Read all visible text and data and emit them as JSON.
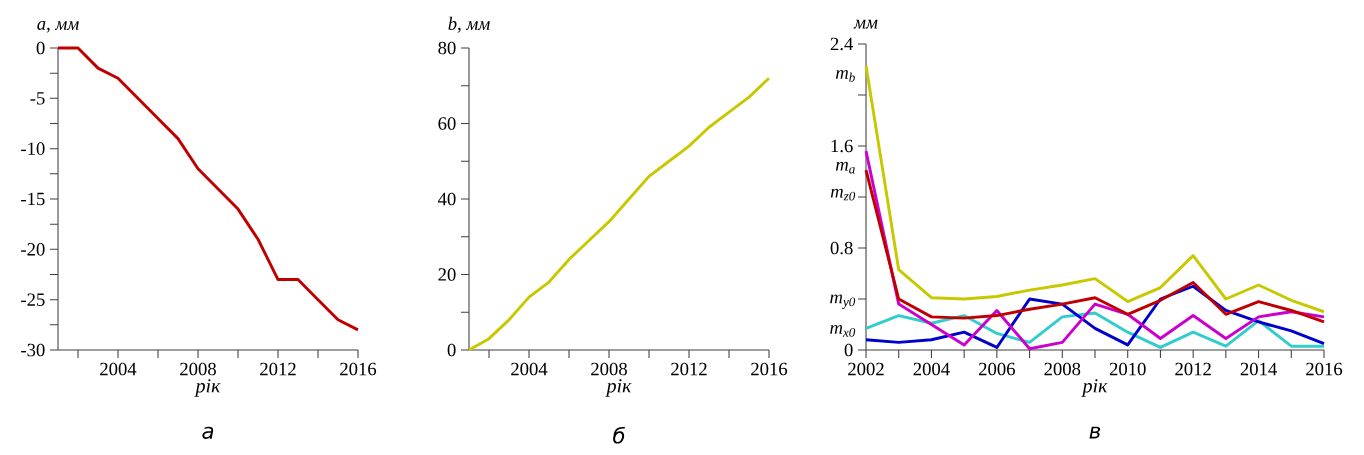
{
  "chart_data": [
    {
      "type": "line",
      "title": "а",
      "xlabel": "рік",
      "ylabel": "a, мм",
      "x": [
        2001,
        2002,
        2003,
        2004,
        2005,
        2006,
        2007,
        2008,
        2009,
        2010,
        2011,
        2012,
        2013,
        2014,
        2015,
        2016
      ],
      "values": [
        0,
        0,
        -2,
        -3,
        -5,
        -7,
        -9,
        -12,
        -14,
        -16,
        -19,
        -23,
        -23,
        -25,
        -27,
        -28
      ],
      "color": "#c00000",
      "xlim": [
        2001,
        2016
      ],
      "ylim": [
        -30,
        0
      ],
      "xticks": [
        {
          "value": 2002,
          "label": null
        },
        2004,
        {
          "value": 2006,
          "label": null
        },
        2008,
        {
          "value": 2010,
          "label": null
        },
        2012,
        {
          "value": 2014,
          "label": null
        },
        2016
      ],
      "yticks": [
        -30,
        {
          "value": -27.5,
          "label": null
        },
        -25,
        {
          "value": -22.5,
          "label": null
        },
        -20,
        {
          "value": -17.5,
          "label": null
        },
        -15,
        {
          "value": -12.5,
          "label": null
        },
        -10,
        {
          "value": -7.5,
          "label": null
        },
        -5,
        {
          "value": -2.5,
          "label": null
        },
        0
      ]
    },
    {
      "type": "line",
      "title": "б",
      "xlabel": "рік",
      "ylabel": "b, мм",
      "x": [
        2001,
        2002,
        2003,
        2004,
        2005,
        2006,
        2007,
        2008,
        2009,
        2010,
        2011,
        2012,
        2013,
        2014,
        2015,
        2016
      ],
      "values": [
        0,
        3,
        8,
        14,
        18,
        24,
        29,
        34,
        40,
        46,
        50,
        54,
        59,
        63,
        67,
        72
      ],
      "color": "#c8c800",
      "xlim": [
        2001,
        2016
      ],
      "ylim": [
        0,
        80
      ],
      "xticks": [
        {
          "value": 2002,
          "label": null
        },
        2004,
        {
          "value": 2006,
          "label": null
        },
        2008,
        {
          "value": 2010,
          "label": null
        },
        2012,
        {
          "value": 2014,
          "label": null
        },
        2016
      ],
      "yticks": [
        0,
        {
          "value": 10,
          "label": null
        },
        20,
        {
          "value": 30,
          "label": null
        },
        40,
        {
          "value": 50,
          "label": null
        },
        60,
        {
          "value": 70,
          "label": null
        },
        80
      ]
    },
    {
      "type": "line",
      "title": "в",
      "xlabel": "рік",
      "ylabel": "мм",
      "x": [
        2002,
        2003,
        2004,
        2005,
        2006,
        2007,
        2008,
        2009,
        2010,
        2011,
        2012,
        2013,
        2014,
        2015,
        2016
      ],
      "series": [
        {
          "color": "#c8c800",
          "values": [
            2.23,
            0.63,
            0.41,
            0.4,
            0.42,
            0.47,
            0.51,
            0.56,
            0.38,
            0.49,
            0.74,
            0.4,
            0.51,
            0.39,
            0.3
          ]
        },
        {
          "color": "#33cccc",
          "values": [
            0.17,
            0.27,
            0.21,
            0.27,
            0.13,
            0.06,
            0.26,
            0.29,
            0.14,
            0.02,
            0.14,
            0.03,
            0.23,
            0.03,
            0.03
          ]
        },
        {
          "color": "#0000cc",
          "values": [
            0.08,
            0.06,
            0.08,
            0.14,
            0.02,
            0.4,
            0.36,
            0.17,
            0.04,
            0.4,
            0.5,
            0.31,
            0.22,
            0.15,
            0.05
          ]
        },
        {
          "color": "#cc00cc",
          "values": [
            1.56,
            0.36,
            0.2,
            0.04,
            0.31,
            0.01,
            0.06,
            0.36,
            0.28,
            0.09,
            0.27,
            0.09,
            0.26,
            0.3,
            0.26
          ]
        },
        {
          "color": "#c00000",
          "values": [
            1.41,
            0.4,
            0.26,
            0.25,
            0.27,
            0.32,
            0.36,
            0.41,
            0.28,
            0.39,
            0.53,
            0.28,
            0.38,
            0.31,
            0.22
          ]
        }
      ],
      "xlim": [
        2002,
        2016
      ],
      "ylim": [
        0,
        2.4
      ],
      "xticks": [
        2002,
        {
          "value": 2003,
          "label": null
        },
        2004,
        {
          "value": 2005,
          "label": null
        },
        2006,
        {
          "value": 2007,
          "label": null
        },
        2008,
        {
          "value": 2009,
          "label": null
        },
        2010,
        {
          "value": 2011,
          "label": null
        },
        2012,
        {
          "value": 2013,
          "label": null
        },
        2014,
        {
          "value": 2015,
          "label": null
        },
        2016
      ],
      "yticks": [
        0,
        {
          "value": 0.4,
          "label": null
        },
        0.8,
        {
          "value": 1.2,
          "label": null
        },
        1.6,
        {
          "value": 2.0,
          "label": null
        },
        2.4
      ],
      "annotations": [
        "m$_{b}$",
        "m$_{a}$",
        "m$_{z0}$",
        "m$_{y0}$",
        "m$_{x0}$"
      ]
    }
  ]
}
